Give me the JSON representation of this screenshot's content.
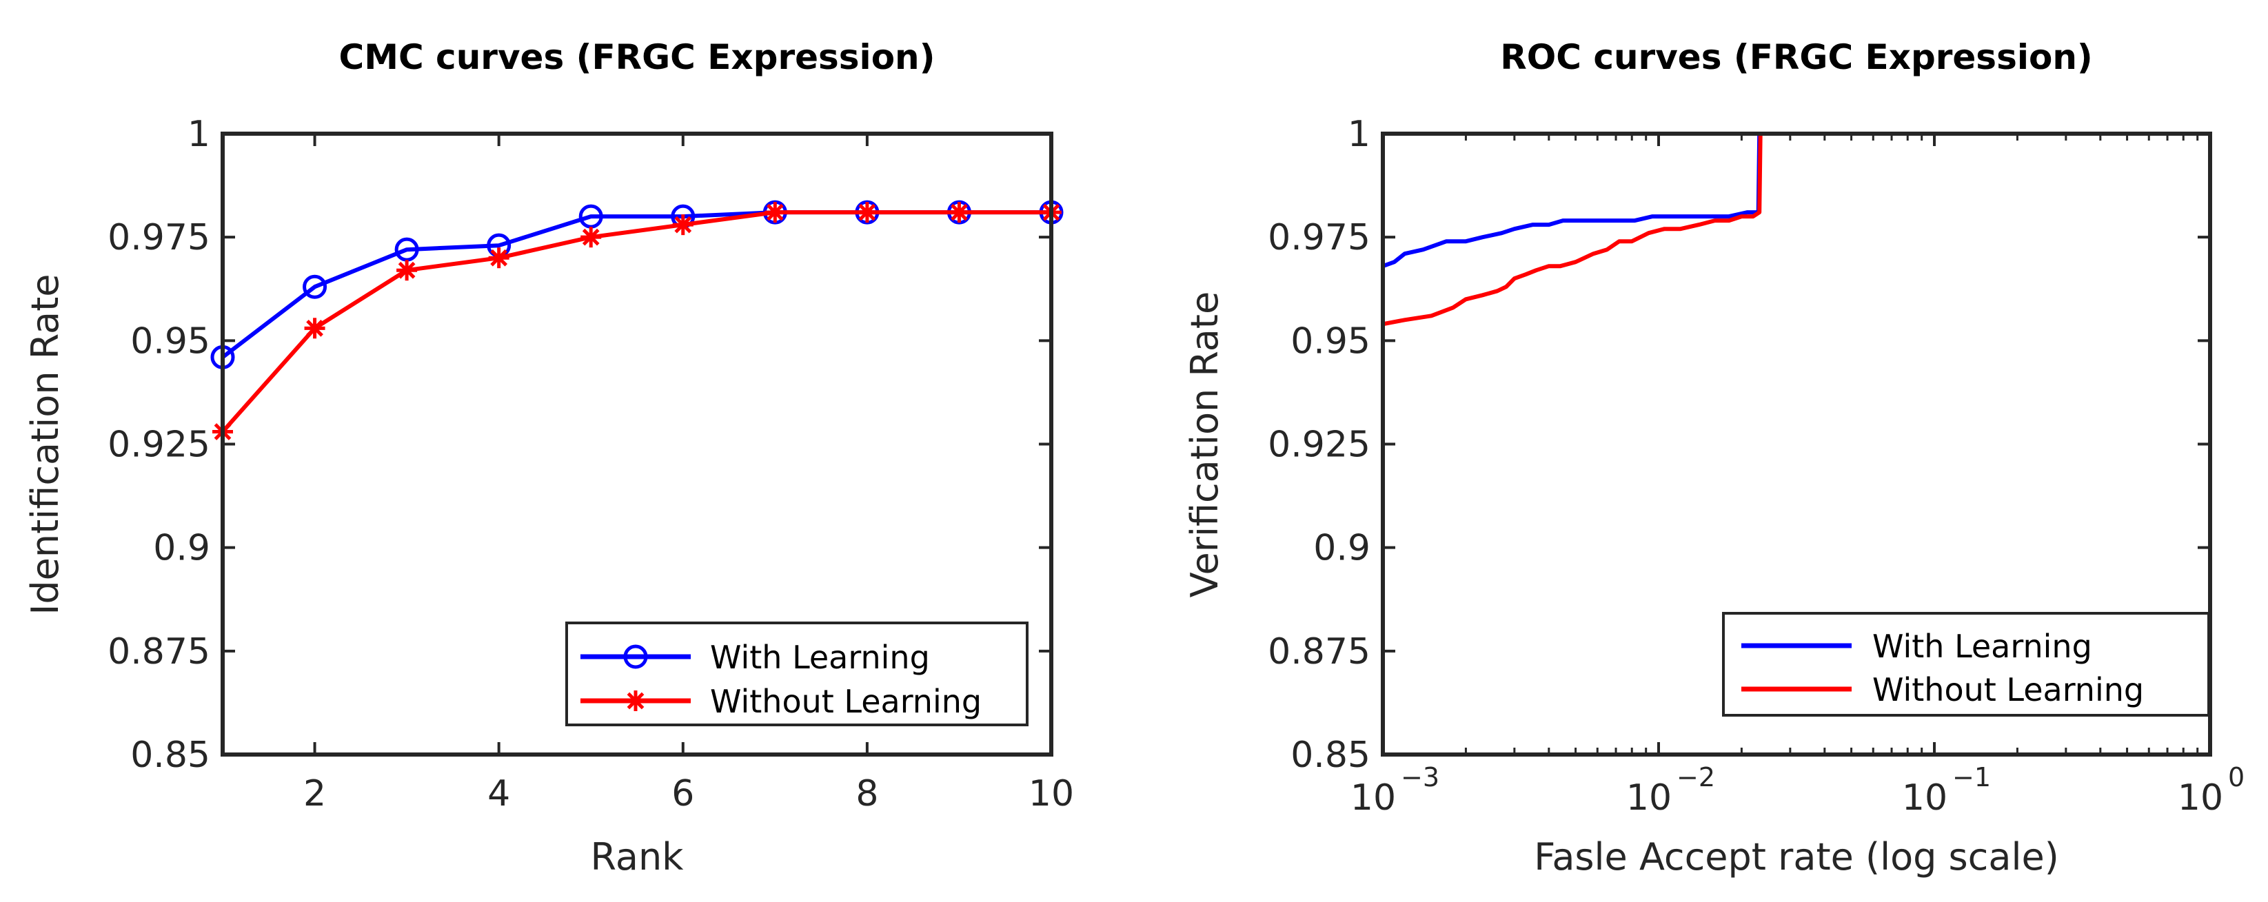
{
  "chart_data": [
    {
      "type": "line",
      "title": "CMC curves (FRGC Expression)",
      "xlabel": "Rank",
      "ylabel": "Identification Rate",
      "xlim": [
        1,
        10
      ],
      "ylim": [
        0.85,
        1
      ],
      "xticks": [
        2,
        4,
        6,
        8,
        10
      ],
      "xtick_labels": [
        "2",
        "4",
        "6",
        "8",
        "10"
      ],
      "yticks": [
        0.85,
        0.875,
        0.9,
        0.925,
        0.95,
        0.975,
        1
      ],
      "ytick_labels": [
        "0.85",
        "0.875",
        "0.9",
        "0.925",
        "0.95",
        "0.975",
        "1"
      ],
      "legend_position": "bottom-right",
      "series": [
        {
          "name": "With Learning",
          "color": "#0000ff",
          "marker": "circle",
          "x": [
            1,
            2,
            3,
            4,
            5,
            6,
            7,
            8,
            9,
            10
          ],
          "y": [
            0.946,
            0.963,
            0.972,
            0.973,
            0.98,
            0.98,
            0.981,
            0.981,
            0.981,
            0.981
          ]
        },
        {
          "name": "Without Learning",
          "color": "#ff0000",
          "marker": "asterisk",
          "x": [
            1,
            2,
            3,
            4,
            5,
            6,
            7,
            8,
            9,
            10
          ],
          "y": [
            0.928,
            0.953,
            0.967,
            0.97,
            0.975,
            0.978,
            0.981,
            0.981,
            0.981,
            0.981
          ]
        }
      ]
    },
    {
      "type": "line",
      "title": "ROC curves (FRGC Expression)",
      "xlabel": "Fasle Accept rate (log scale)",
      "ylabel": "Verification Rate",
      "xscale": "log",
      "xlim": [
        0.001,
        1
      ],
      "ylim": [
        0.85,
        1
      ],
      "xticks": [
        0.001,
        0.01,
        0.1,
        1
      ],
      "xtick_labels": [
        {
          "base": "10",
          "exp": "−3"
        },
        {
          "base": "10",
          "exp": "−2"
        },
        {
          "base": "10",
          "exp": "−1"
        },
        {
          "base": "10",
          "exp": "0"
        }
      ],
      "yticks": [
        0.85,
        0.875,
        0.9,
        0.925,
        0.95,
        0.975,
        1
      ],
      "ytick_labels": [
        "0.85",
        "0.875",
        "0.9",
        "0.925",
        "0.95",
        "0.975",
        "1"
      ],
      "legend_position": "bottom-right",
      "series": [
        {
          "name": "With Learning",
          "color": "#0000ff",
          "x": [
            0.001,
            0.0011,
            0.0012,
            0.0014,
            0.0017,
            0.002,
            0.0023,
            0.0027,
            0.003,
            0.0035,
            0.004,
            0.0045,
            0.0055,
            0.007,
            0.0082,
            0.0095,
            0.012,
            0.015,
            0.018,
            0.021,
            0.023,
            0.0232,
            0.03,
            0.05,
            0.1,
            0.2,
            0.5,
            1
          ],
          "y": [
            0.968,
            0.969,
            0.971,
            0.972,
            0.974,
            0.974,
            0.975,
            0.976,
            0.977,
            0.978,
            0.978,
            0.979,
            0.979,
            0.979,
            0.979,
            0.98,
            0.98,
            0.98,
            0.98,
            0.981,
            0.981,
            1,
            1,
            1,
            1,
            1,
            1,
            1
          ]
        },
        {
          "name": "Without Learning",
          "color": "#ff0000",
          "x": [
            0.001,
            0.0012,
            0.0015,
            0.0018,
            0.002,
            0.0023,
            0.0026,
            0.0028,
            0.003,
            0.0033,
            0.0036,
            0.004,
            0.0044,
            0.005,
            0.0058,
            0.0065,
            0.0072,
            0.008,
            0.0092,
            0.0105,
            0.012,
            0.014,
            0.016,
            0.018,
            0.02,
            0.022,
            0.0232,
            0.0234,
            0.03,
            0.05,
            0.1,
            0.2,
            0.5,
            1
          ],
          "y": [
            0.954,
            0.955,
            0.956,
            0.958,
            0.96,
            0.961,
            0.962,
            0.963,
            0.965,
            0.966,
            0.967,
            0.968,
            0.968,
            0.969,
            0.971,
            0.972,
            0.974,
            0.974,
            0.976,
            0.977,
            0.977,
            0.978,
            0.979,
            0.979,
            0.98,
            0.98,
            0.981,
            1,
            1,
            1,
            1,
            1,
            1,
            1
          ]
        }
      ]
    }
  ]
}
